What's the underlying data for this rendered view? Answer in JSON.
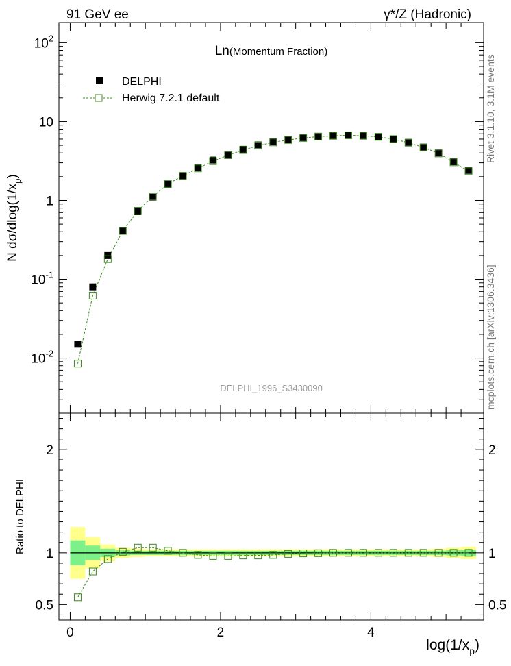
{
  "header": {
    "left_label": "91 GeV ee",
    "right_label": "γ*/Z (Hadronic)"
  },
  "side_text": {
    "rivet": "Rivet 3.1.10,  3.1M events",
    "mcplots": "mcplots.cern.ch [arXiv:1306.3436]"
  },
  "chart_data": [
    {
      "panel": "main",
      "type": "scatter",
      "title": "Ln(Momentum Fraction)",
      "watermark": "DELPHI_1996_S3430090",
      "ylabel": "N dσ/dlog(1/x_p)",
      "yscale": "log",
      "ylim": [
        0.002,
        180
      ],
      "xlim": [
        -0.15,
        5.5
      ],
      "y_ticks": [
        "10^-2",
        "10^-1",
        "1",
        "10",
        "10^2"
      ],
      "legend_position": "top-left",
      "x": [
        0.1,
        0.3,
        0.5,
        0.7,
        0.9,
        1.1,
        1.3,
        1.5,
        1.7,
        1.9,
        2.1,
        2.3,
        2.5,
        2.7,
        2.9,
        3.1,
        3.3,
        3.5,
        3.7,
        3.9,
        4.1,
        4.3,
        4.5,
        4.7,
        4.9,
        5.1,
        5.3
      ],
      "series": [
        {
          "name": "DELPHI",
          "marker": "filled-square",
          "color": "#000000",
          "values": [
            0.015,
            0.08,
            0.2,
            0.41,
            0.72,
            1.1,
            1.6,
            2.05,
            2.6,
            3.25,
            3.85,
            4.45,
            5.05,
            5.55,
            5.95,
            6.25,
            6.5,
            6.65,
            6.7,
            6.65,
            6.45,
            6.05,
            5.45,
            4.75,
            4.0,
            3.1,
            2.4
          ]
        },
        {
          "name": "Herwig 7.2.1 default",
          "marker": "open-square",
          "line": "dashed",
          "color": "#3a8a1a",
          "values": [
            0.0085,
            0.062,
            0.18,
            0.41,
            0.74,
            1.12,
            1.62,
            2.05,
            2.55,
            3.15,
            3.75,
            4.35,
            4.95,
            5.45,
            5.85,
            6.2,
            6.45,
            6.6,
            6.7,
            6.6,
            6.4,
            6.0,
            5.4,
            4.7,
            3.95,
            3.05,
            2.35
          ]
        }
      ]
    },
    {
      "panel": "ratio",
      "type": "line",
      "ylabel": "Ratio to DELPHI",
      "xlabel": "log(1/x_p)",
      "ylim": [
        0.35,
        2.35
      ],
      "xlim": [
        -0.15,
        5.5
      ],
      "y_ticks": [
        "0.5",
        "1",
        "2"
      ],
      "x_ticks": [
        "0",
        "2",
        "4"
      ],
      "x": [
        0.1,
        0.3,
        0.5,
        0.7,
        0.9,
        1.1,
        1.3,
        1.5,
        1.7,
        1.9,
        2.1,
        2.3,
        2.5,
        2.7,
        2.9,
        3.1,
        3.3,
        3.5,
        3.7,
        3.9,
        4.1,
        4.3,
        4.5,
        4.7,
        4.9,
        5.1,
        5.3
      ],
      "band_edges": [
        0,
        0.2,
        0.4,
        0.6,
        0.8,
        1.0,
        1.2,
        1.4,
        1.6,
        1.8,
        2.0,
        2.2,
        2.4,
        2.6,
        2.8,
        3.0,
        3.2,
        3.4,
        3.6,
        3.8,
        4.0,
        4.2,
        4.4,
        4.6,
        4.8,
        5.0,
        5.2,
        5.4
      ],
      "band_colors": {
        "stat": "#7df08a",
        "total": "#ffff8c"
      },
      "band_stat_halfwidth": [
        0.12,
        0.07,
        0.04,
        0.025,
        0.02,
        0.02,
        0.02,
        0.02,
        0.02,
        0.02,
        0.02,
        0.02,
        0.02,
        0.02,
        0.02,
        0.02,
        0.02,
        0.02,
        0.02,
        0.02,
        0.02,
        0.02,
        0.02,
        0.02,
        0.02,
        0.025,
        0.03
      ],
      "band_total_halfwidth": [
        0.25,
        0.15,
        0.08,
        0.05,
        0.04,
        0.035,
        0.035,
        0.035,
        0.035,
        0.035,
        0.035,
        0.035,
        0.035,
        0.035,
        0.035,
        0.035,
        0.035,
        0.035,
        0.035,
        0.035,
        0.035,
        0.035,
        0.035,
        0.035,
        0.04,
        0.05,
        0.06
      ],
      "series": [
        {
          "name": "Herwig 7.2.1 default",
          "marker": "open-square",
          "line": "dashed",
          "color": "#3a8a1a",
          "values": [
            0.57,
            0.82,
            0.94,
            1.01,
            1.05,
            1.05,
            1.02,
            1.0,
            0.98,
            0.97,
            0.97,
            0.975,
            0.975,
            0.98,
            0.99,
            0.995,
            0.997,
            1.0,
            1.0,
            1.0,
            1.0,
            1.0,
            1.0,
            1.0,
            1.0,
            1.0,
            1.0
          ]
        }
      ]
    }
  ]
}
